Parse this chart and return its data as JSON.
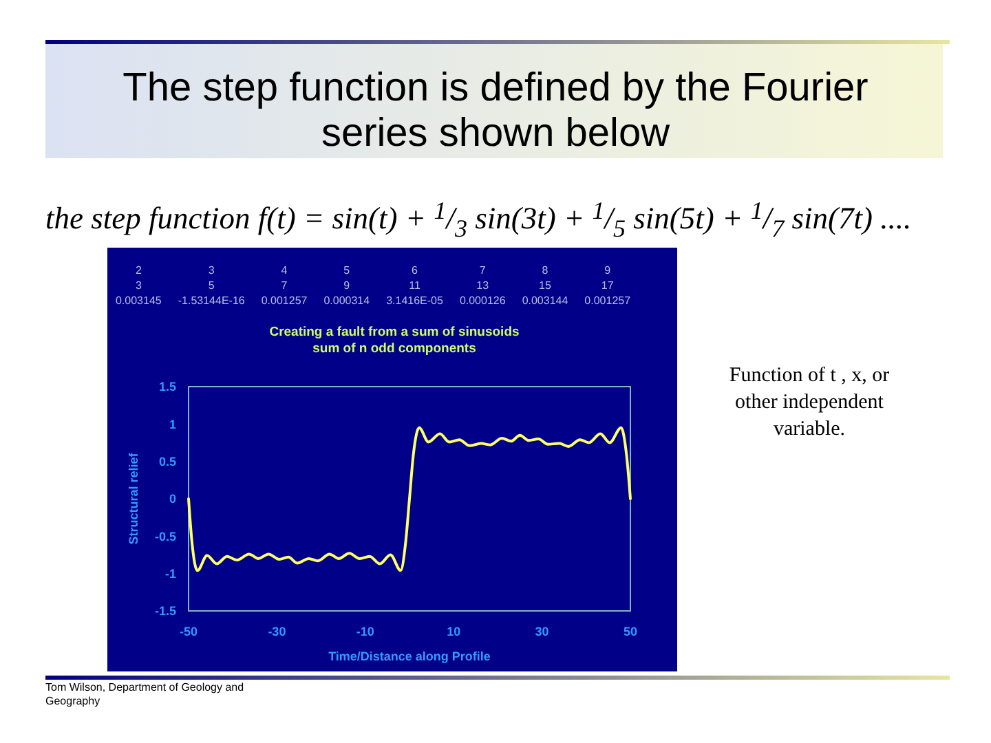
{
  "chart_data": {
    "type": "line",
    "title": "The step function is defined by the Fourier series shown below",
    "subtitle": "Creating a fault from a sum of sinusoids\nsum of n odd components",
    "xlabel": "Time/Distance along Profile",
    "ylabel": "Structural relief",
    "x": [
      -50,
      -49.2,
      -48,
      -45.8,
      -43.6,
      -41.3,
      -39.1,
      -36.3,
      -34.2,
      -31.9,
      -29.5,
      -27.4,
      -25.4,
      -22.8,
      -20.7,
      -18.1,
      -16,
      -13.6,
      -11.3,
      -9,
      -6.7,
      -4.3,
      -2,
      -0.9,
      0,
      0.9,
      2.2,
      4.3,
      6.9,
      9,
      11.3,
      13.6,
      16.2,
      18.3,
      20.9,
      23,
      25,
      27,
      29.2,
      31.3,
      33.9,
      36,
      38.6,
      40.6,
      43.2,
      45.3,
      47.9,
      49.1,
      50
    ],
    "series": [
      {
        "color": "#ffff66",
        "values": [
          0,
          -0.6,
          -0.96,
          -0.76,
          -0.87,
          -0.77,
          -0.82,
          -0.74,
          -0.8,
          -0.74,
          -0.81,
          -0.78,
          -0.86,
          -0.8,
          -0.83,
          -0.74,
          -0.8,
          -0.73,
          -0.8,
          -0.77,
          -0.87,
          -0.75,
          -0.96,
          -0.6,
          0,
          0.6,
          0.95,
          0.76,
          0.87,
          0.76,
          0.79,
          0.71,
          0.74,
          0.72,
          0.81,
          0.77,
          0.85,
          0.78,
          0.8,
          0.73,
          0.74,
          0.7,
          0.79,
          0.75,
          0.87,
          0.75,
          0.95,
          0.6,
          0
        ]
      }
    ],
    "xlim": [
      -50,
      50
    ],
    "xticks": [
      -50,
      -30,
      -10,
      10,
      30,
      50
    ],
    "ylim": [
      -1.5,
      1.5
    ],
    "yticks": [
      -1.5,
      -1,
      -0.5,
      0,
      0.5,
      1,
      1.5
    ],
    "annotations": [
      "the step function f(t) = sin(t) + $^{1}$/$_{3}$ sin(3t) + $^{1}$/$_{5}$ sin(5t) + $^{1}$/$_{7}$ sin(7t) ....",
      "2 3 4 5 6 7 8 9",
      "3 5 7 9 11 13 15 17",
      "0.003145 -1.53144E-16 0.001257 0.000314 3.1416E-05 0.000126 0.003144 0.001257",
      "Function of t , x, or other independent variable.",
      "Tom Wilson, Department of Geology and Geography"
    ]
  }
}
